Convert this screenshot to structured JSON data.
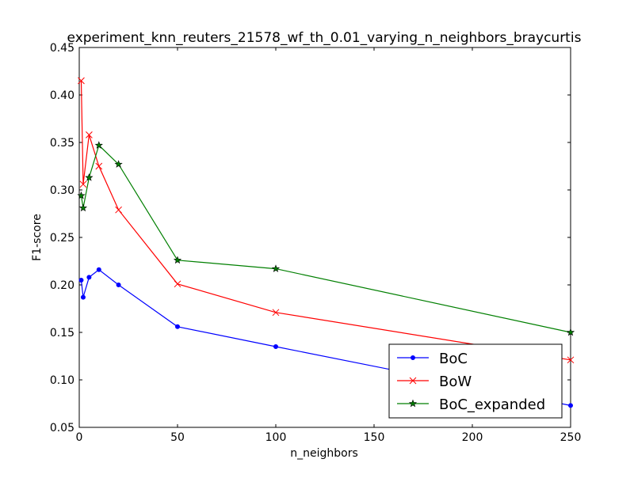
{
  "chart_data": {
    "type": "line",
    "title": "experiment_knn_reuters_21578_wf_th_0.01_varying_n_neighbors_braycurtis",
    "xlabel": "n_neighbors",
    "ylabel": "F1-score",
    "xlim": [
      0,
      250
    ],
    "ylim": [
      0.05,
      0.45
    ],
    "xticks": [
      0,
      50,
      100,
      150,
      200,
      250
    ],
    "xtick_labels": [
      "0",
      "50",
      "100",
      "150",
      "200",
      "250"
    ],
    "yticks": [
      0.05,
      0.1,
      0.15,
      0.2,
      0.25,
      0.3,
      0.35,
      0.4,
      0.45
    ],
    "ytick_labels": [
      "0.05",
      "0.10",
      "0.15",
      "0.20",
      "0.25",
      "0.30",
      "0.35",
      "0.40",
      "0.45"
    ],
    "grid": false,
    "legend_position": "lower-right",
    "x": [
      1,
      2,
      5,
      10,
      20,
      50,
      100,
      250
    ],
    "series": [
      {
        "name": "BoC",
        "color": "#0000ff",
        "marker": "dot",
        "values": [
          0.205,
          0.187,
          0.208,
          0.216,
          0.2,
          0.156,
          0.135,
          0.073
        ]
      },
      {
        "name": "BoW",
        "color": "#ff0000",
        "marker": "x",
        "values": [
          0.415,
          0.306,
          0.358,
          0.325,
          0.279,
          0.201,
          0.171,
          0.121
        ]
      },
      {
        "name": "BoC_expanded",
        "color": "#007f00",
        "marker": "star",
        "values": [
          0.294,
          0.281,
          0.313,
          0.347,
          0.327,
          0.226,
          0.217,
          0.15
        ]
      }
    ]
  }
}
